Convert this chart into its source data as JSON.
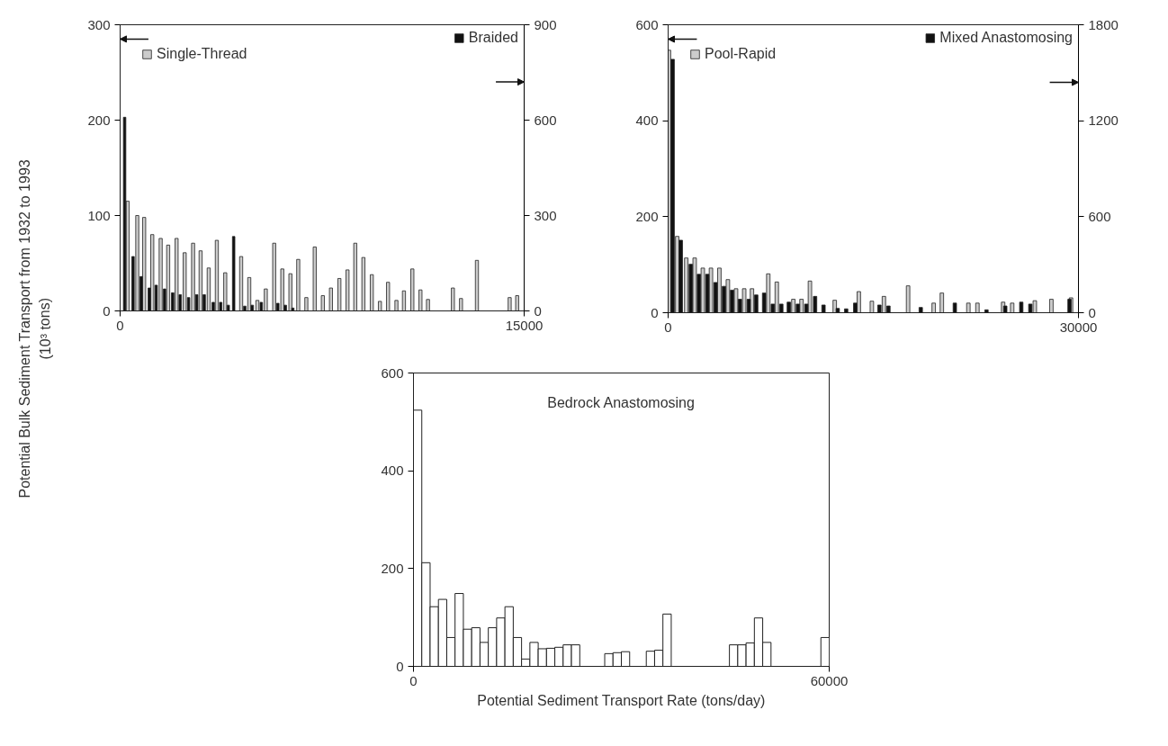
{
  "chart_data": [
    {
      "type": "bar",
      "ylabel": "Potential Bulk Sediment Transport from 1932 to 1993\n(10³ tons)",
      "xlim": [
        0,
        15000
      ],
      "xticks": [
        0,
        15000
      ],
      "ylim": [
        0,
        300
      ],
      "yticks": [
        0,
        100,
        200,
        300
      ],
      "y2lim": [
        0,
        900
      ],
      "y2ticks": [
        0,
        300,
        600,
        900
      ],
      "grid": false,
      "legend": "top",
      "series": [
        {
          "name": "Single-Thread",
          "axis": "y",
          "color": "#cccccc",
          "x": [
            279,
            636,
            892,
            1193,
            1505,
            1784,
            2096,
            2397,
            2709,
            2988,
            3289,
            3590,
            3902,
            4493,
            4794,
            5096,
            5408,
            5720,
            6021,
            6322,
            6612,
            6913,
            7225,
            7526,
            7827,
            8140,
            8441,
            8730,
            9032,
            9344,
            9645,
            9946,
            10258,
            10537,
            10849,
            11150,
            11429,
            12354,
            12655,
            13246,
            14462,
            14740
          ],
          "values": [
            115,
            100,
            98,
            80,
            76,
            69,
            76,
            61,
            71,
            63,
            45,
            74,
            40,
            57,
            35,
            11,
            23,
            71,
            44,
            39,
            54,
            14,
            67,
            16,
            24,
            34,
            43,
            71,
            56,
            38,
            10,
            30,
            11,
            21,
            44,
            22,
            12,
            24,
            13,
            53,
            14,
            16
          ]
        },
        {
          "name": "Braided",
          "axis": "y2",
          "color": "#111111",
          "x": [
            167,
            479,
            781,
            1082,
            1338,
            1650,
            1951,
            2230,
            2542,
            2843,
            3122,
            3457,
            3735,
            4014,
            4215,
            4627,
            4906,
            5241,
            5854,
            6133,
            6411
          ],
          "values": [
            609,
            171,
            108,
            72,
            81,
            69,
            57,
            51,
            42,
            51,
            51,
            27,
            27,
            18,
            234,
            15,
            18,
            27,
            24,
            18,
            9
          ]
        }
      ]
    },
    {
      "type": "bar",
      "xlim": [
        0,
        30000
      ],
      "xticks": [
        0,
        30000
      ],
      "ylim": [
        0,
        600
      ],
      "yticks": [
        0,
        200,
        400,
        600
      ],
      "y2lim": [
        0,
        1800
      ],
      "y2ticks": [
        0,
        600,
        1200,
        1800
      ],
      "grid": false,
      "legend": "top",
      "series": [
        {
          "name": "Pool-Rapid",
          "axis": "y",
          "color": "#cccccc",
          "x": [
            60,
            662,
            1324,
            1940,
            2535,
            3131,
            3747,
            4369,
            4965,
            5561,
            6130,
            7322,
            7944,
            9155,
            9751,
            10367,
            12181,
            13942,
            14895,
            15776,
            17543,
            19416,
            20012,
            21952,
            22614,
            24492,
            25154,
            26809,
            28020,
            29456
          ],
          "values": [
            547,
            159,
            114,
            114,
            93,
            93,
            93,
            69,
            50,
            50,
            50,
            81,
            64,
            28,
            28,
            66,
            26,
            44,
            24,
            34,
            56,
            20,
            41,
            20,
            20,
            22,
            20,
            25,
            28,
            31
          ]
        },
        {
          "name": "Mixed Anastomosing",
          "axis": "y2",
          "color": "#111111",
          "x": [
            331,
            927,
            1655,
            2251,
            2866,
            3462,
            4080,
            4674,
            5250,
            5892,
            6441,
            7017,
            7653,
            8275,
            8824,
            9487,
            10102,
            10744,
            11360,
            12400,
            13015,
            13677,
            15445,
            16107,
            18470,
            20960,
            23276,
            24647,
            25819,
            26481,
            29346
          ],
          "values": [
            1584,
            453,
            303,
            240,
            240,
            189,
            165,
            141,
            84,
            84,
            111,
            123,
            54,
            54,
            66,
            54,
            54,
            102,
            48,
            27,
            24,
            60,
            48,
            42,
            33,
            60,
            18,
            42,
            66,
            54,
            84
          ]
        }
      ]
    },
    {
      "type": "histogram",
      "title": "Bedrock Anastomosing",
      "xlabel": "Potential Sediment Transport Rate (tons/day)",
      "xlim": [
        0,
        60000
      ],
      "xticks": [
        0,
        60000
      ],
      "ylim": [
        0,
        600
      ],
      "yticks": [
        0,
        200,
        400,
        600
      ],
      "grid": false,
      "color": "#222222",
      "bins": [
        0,
        1200,
        2400,
        3600,
        4800,
        6000,
        7200,
        8400,
        9600,
        10800,
        12000,
        13200,
        14400,
        15600,
        16800,
        18000,
        19200,
        20400,
        21600,
        22800,
        24000,
        25200,
        26400,
        27600,
        28800,
        30000,
        31200,
        32400,
        33600,
        34800,
        36000,
        37200,
        38400,
        39600,
        40800,
        42000,
        43200,
        44400,
        45600,
        46800,
        48000,
        49200,
        50400,
        51600,
        52800,
        54000,
        55200,
        56400,
        57600,
        58800,
        60000
      ],
      "values": [
        524,
        212,
        122,
        137,
        59,
        149,
        76,
        79,
        49,
        79,
        99,
        122,
        59,
        15,
        49,
        36,
        37,
        39,
        44,
        44,
        0,
        0,
        0,
        26,
        28,
        30,
        0,
        0,
        31,
        33,
        107,
        0,
        0,
        0,
        0,
        0,
        0,
        0,
        44,
        44,
        48,
        99,
        49,
        0,
        0,
        0,
        0,
        0,
        0,
        59
      ]
    }
  ]
}
